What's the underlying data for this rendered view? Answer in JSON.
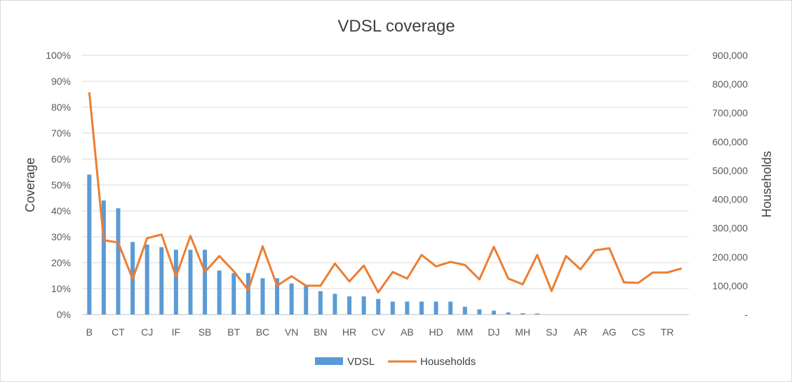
{
  "chart_data": {
    "type": "bar",
    "title": "VDSL coverage",
    "ylabel": "Coverage",
    "y2label": "Households",
    "ylim": [
      0,
      1
    ],
    "y2lim": [
      0,
      900000
    ],
    "y_ticks": [
      "0%",
      "10%",
      "20%",
      "30%",
      "40%",
      "50%",
      "60%",
      "70%",
      "80%",
      "90%",
      "100%"
    ],
    "y2_ticks": [
      "-",
      "100,000",
      "200,000",
      "300,000",
      "400,000",
      "500,000",
      "600,000",
      "700,000",
      "800,000",
      "900,000"
    ],
    "categories": [
      "B",
      "",
      "CT",
      "",
      "CJ",
      "",
      "IF",
      "",
      "SB",
      "",
      "BT",
      "",
      "BC",
      "",
      "VN",
      "",
      "BN",
      "",
      "HR",
      "",
      "CV",
      "",
      "AB",
      "",
      "HD",
      "",
      "MM",
      "",
      "DJ",
      "",
      "MH",
      "",
      "SJ",
      "",
      "AR",
      "",
      "AG",
      "",
      "CS",
      "",
      "TR",
      ""
    ],
    "series": [
      {
        "name": "VDSL",
        "type": "bar",
        "axis": "left",
        "color": "#5b9bd5",
        "values": [
          0.54,
          0.44,
          0.41,
          0.28,
          0.27,
          0.26,
          0.25,
          0.25,
          0.25,
          0.17,
          0.16,
          0.16,
          0.14,
          0.14,
          0.12,
          0.11,
          0.09,
          0.08,
          0.07,
          0.07,
          0.06,
          0.05,
          0.05,
          0.05,
          0.05,
          0.05,
          0.03,
          0.02,
          0.015,
          0.008,
          0.005,
          0.004,
          0,
          0,
          0,
          0,
          0,
          0,
          0,
          0,
          0,
          0
        ]
      },
      {
        "name": "Households",
        "type": "line",
        "axis": "right",
        "color": "#ed7d31",
        "values": [
          772000,
          258000,
          250000,
          123000,
          265000,
          278000,
          132000,
          273000,
          148000,
          203000,
          150000,
          85000,
          237000,
          100000,
          133000,
          100000,
          100000,
          177000,
          115000,
          170000,
          77000,
          148000,
          125000,
          207000,
          167000,
          183000,
          172000,
          122000,
          235000,
          125000,
          105000,
          207000,
          82000,
          203000,
          157000,
          223000,
          230000,
          112000,
          110000,
          146000,
          146000,
          160000
        ]
      }
    ],
    "legend": "bottom",
    "grid": true
  }
}
